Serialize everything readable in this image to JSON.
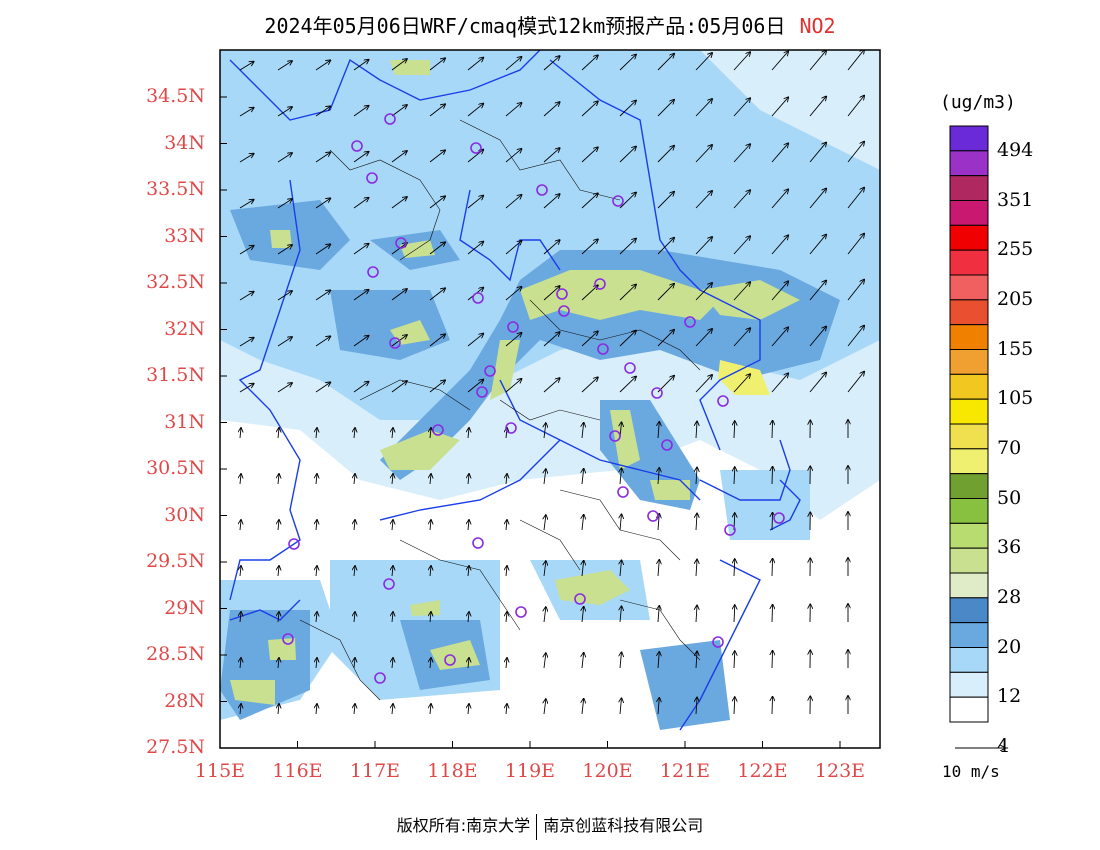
{
  "title": {
    "text": "2024年05月06日WRF/cmaq模式12km预报产品:05月06日",
    "variable": "NO2"
  },
  "lat_labels": [
    "34.5N",
    "34N",
    "33.5N",
    "33N",
    "32.5N",
    "32N",
    "31.5N",
    "31N",
    "30.5N",
    "30N",
    "29.5N",
    "29N",
    "28.5N",
    "28N",
    "27.5N"
  ],
  "lon_labels": [
    "115E",
    "116E",
    "117E",
    "118E",
    "119E",
    "120E",
    "121E",
    "122E",
    "123E"
  ],
  "colorbar": {
    "unit": "(ug/m3)",
    "labels": [
      "494",
      "351",
      "255",
      "205",
      "155",
      "105",
      "70",
      "50",
      "36",
      "28",
      "20",
      "12",
      "4"
    ],
    "colors": [
      "#6a2ad8",
      "#9a32c8",
      "#b02860",
      "#c81870",
      "#f00000",
      "#f03040",
      "#f06060",
      "#e85030",
      "#f08000",
      "#f0a030",
      "#f0c820",
      "#f8e800",
      "#f0e050",
      "#f0f070",
      "#70a030",
      "#88c040",
      "#b8dc70",
      "#c8e090",
      "#e0ecc8",
      "#4a88c8",
      "#6aa8e0",
      "#a8d8f8",
      "#d8eefa",
      "#ffffff"
    ]
  },
  "wind_ref": {
    "label": "10 m/s"
  },
  "footer": {
    "left": "版权所有:南京大学",
    "right": "南京创蓝科技有限公司"
  },
  "colors": {
    "axis_label": "#e04848",
    "boundary": "#1a3ee8",
    "marker": "#8a2be2",
    "map_frame": "#000000"
  }
}
